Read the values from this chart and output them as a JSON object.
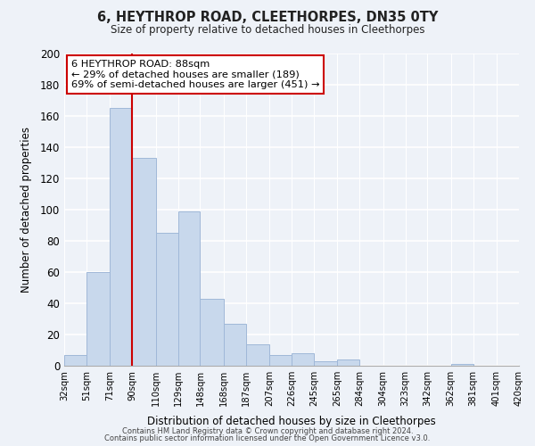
{
  "title": "6, HEYTHROP ROAD, CLEETHORPES, DN35 0TY",
  "subtitle": "Size of property relative to detached houses in Cleethorpes",
  "xlabel": "Distribution of detached houses by size in Cleethorpes",
  "ylabel": "Number of detached properties",
  "footnote1": "Contains HM Land Registry data © Crown copyright and database right 2024.",
  "footnote2": "Contains public sector information licensed under the Open Government Licence v3.0.",
  "bin_labels": [
    "32sqm",
    "51sqm",
    "71sqm",
    "90sqm",
    "110sqm",
    "129sqm",
    "148sqm",
    "168sqm",
    "187sqm",
    "207sqm",
    "226sqm",
    "245sqm",
    "265sqm",
    "284sqm",
    "304sqm",
    "323sqm",
    "342sqm",
    "362sqm",
    "381sqm",
    "401sqm",
    "420sqm"
  ],
  "bar_values": [
    7,
    60,
    165,
    133,
    85,
    99,
    43,
    27,
    14,
    7,
    8,
    3,
    4,
    0,
    0,
    0,
    0,
    1,
    0,
    0,
    0
  ],
  "bar_color": "#c8d8ec",
  "bar_edge_color": "#a0b8d8",
  "ylim": [
    0,
    200
  ],
  "yticks": [
    0,
    20,
    40,
    60,
    80,
    100,
    120,
    140,
    160,
    180,
    200
  ],
  "property_line_x": 90,
  "property_line_color": "#cc0000",
  "annotation_box_title": "6 HEYTHROP ROAD: 88sqm",
  "annotation_line1": "← 29% of detached houses are smaller (189)",
  "annotation_line2": "69% of semi-detached houses are larger (451) →",
  "annotation_box_color": "#ffffff",
  "annotation_box_edgecolor": "#cc0000",
  "bin_edges": [
    32,
    51,
    71,
    90,
    110,
    129,
    148,
    168,
    187,
    207,
    226,
    245,
    265,
    284,
    304,
    323,
    342,
    362,
    381,
    401,
    420
  ],
  "background_color": "#eef2f8"
}
